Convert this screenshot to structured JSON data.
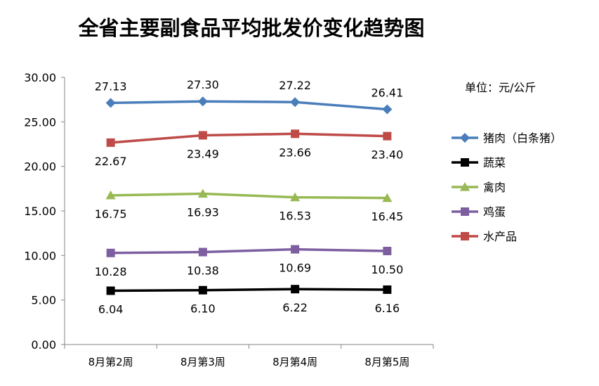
{
  "chart_data": {
    "type": "line",
    "title": "全省主要副食品平均批发价变化趋势图",
    "unit_note": "单位：元/公斤",
    "categories": [
      "8月第2周",
      "8月第3周",
      "8月第4周",
      "8月第5周"
    ],
    "ylim": [
      0,
      30
    ],
    "yticks": [
      "0.00",
      "5.00",
      "10.00",
      "15.00",
      "20.00",
      "25.00",
      "30.00"
    ],
    "grid": false,
    "legend_position": "right",
    "series": [
      {
        "name": "猪肉（白条猪）",
        "values": [
          27.13,
          27.3,
          27.22,
          26.41
        ],
        "labels": [
          "27.13",
          "27.30",
          "27.22",
          "26.41"
        ],
        "color": "#4A7EBB",
        "marker": "diamond",
        "label_pos": "above"
      },
      {
        "name": "蔬菜",
        "values": [
          6.04,
          6.1,
          6.22,
          6.16
        ],
        "labels": [
          "6.04",
          "6.10",
          "6.22",
          "6.16"
        ],
        "color": "#000000",
        "marker": "square",
        "label_pos": "below"
      },
      {
        "name": "禽肉",
        "values": [
          16.75,
          16.93,
          16.53,
          16.45
        ],
        "labels": [
          "16.75",
          "16.93",
          "16.53",
          "16.45"
        ],
        "color": "#98B954",
        "marker": "triangle",
        "label_pos": "below"
      },
      {
        "name": "鸡蛋",
        "values": [
          10.28,
          10.38,
          10.69,
          10.5
        ],
        "labels": [
          "10.28",
          "10.38",
          "10.69",
          "10.50"
        ],
        "color": "#7D5FA0",
        "marker": "square",
        "label_pos": "below"
      },
      {
        "name": "水产品",
        "values": [
          22.67,
          23.49,
          23.66,
          23.4
        ],
        "labels": [
          "22.67",
          "23.49",
          "23.66",
          "23.40"
        ],
        "color": "#BE4B48",
        "marker": "square",
        "label_pos": "below"
      }
    ]
  }
}
